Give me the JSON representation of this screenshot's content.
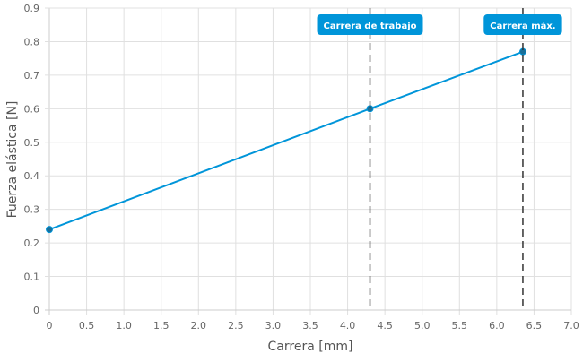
{
  "chart_data": {
    "type": "line",
    "title": "",
    "xlabel": "Carrera [mm]",
    "ylabel": "Fuerza elástica [N]",
    "xlim": [
      0,
      7
    ],
    "ylim": [
      0,
      0.9
    ],
    "xticks": [
      "0",
      "0.5",
      "1.0",
      "1.5",
      "2.0",
      "2.5",
      "3.0",
      "3.5",
      "4.0",
      "4.5",
      "5.0",
      "5.5",
      "6.0",
      "6.5",
      "7.0"
    ],
    "yticks": [
      "0",
      "0.1",
      "0.2",
      "0.3",
      "0.4",
      "0.5",
      "0.6",
      "0.7",
      "0.8",
      "0.9"
    ],
    "grid": true,
    "series": [
      {
        "x": [
          0,
          4.3,
          6.35
        ],
        "y": [
          0.24,
          0.6,
          0.77
        ],
        "color": "#0095d9"
      }
    ],
    "annotations": [
      {
        "x": 4.3,
        "label": "Carrera de trabajo",
        "style": "dashed-vertical"
      },
      {
        "x": 6.35,
        "label": "Carrera máx.",
        "style": "dashed-vertical"
      }
    ],
    "colors": {
      "line": "#0095d9",
      "marker": "#1a6f99",
      "label_bg": "#0095d9",
      "vline": "#333333",
      "grid": "#e0e0e0"
    }
  }
}
